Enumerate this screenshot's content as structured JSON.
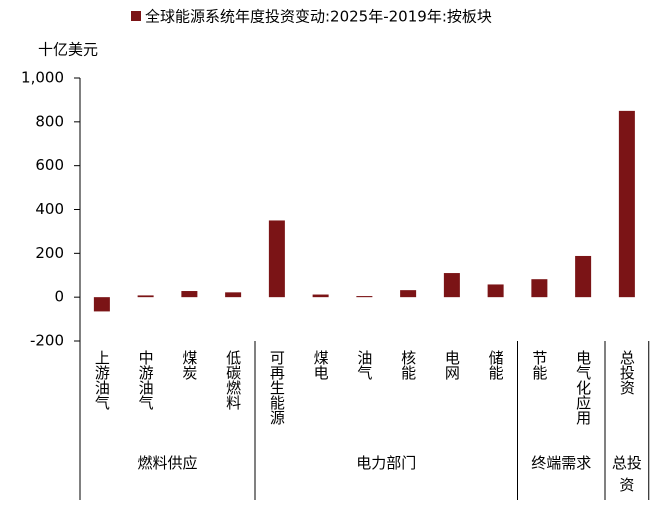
{
  "chart_data": {
    "type": "bar",
    "title": "全球能源系统年度投资变动:2025年-2019年:按板块",
    "y_axis_label": "十亿美元",
    "categories": [
      "上游油气",
      "中游油气",
      "煤炭",
      "低碳燃料",
      "可再生能源",
      "煤电",
      "油气",
      "核能",
      "电网",
      "储能",
      "节能",
      "电气化应用",
      "总投资"
    ],
    "values": [
      -65,
      8,
      28,
      22,
      350,
      12,
      5,
      32,
      110,
      58,
      82,
      188,
      850
    ],
    "color": "#7b1416",
    "groups": [
      {
        "label": "燃料供应",
        "count": 4
      },
      {
        "label": "电力部门",
        "count": 6
      },
      {
        "label": "终端需求",
        "count": 2
      },
      {
        "label": "总投资",
        "count": 1
      }
    ],
    "ylim": [
      -200,
      1000
    ],
    "yticks": [
      -200,
      0,
      200,
      400,
      600,
      800,
      {
        "value": 1000,
        "label": "1,000"
      }
    ]
  }
}
